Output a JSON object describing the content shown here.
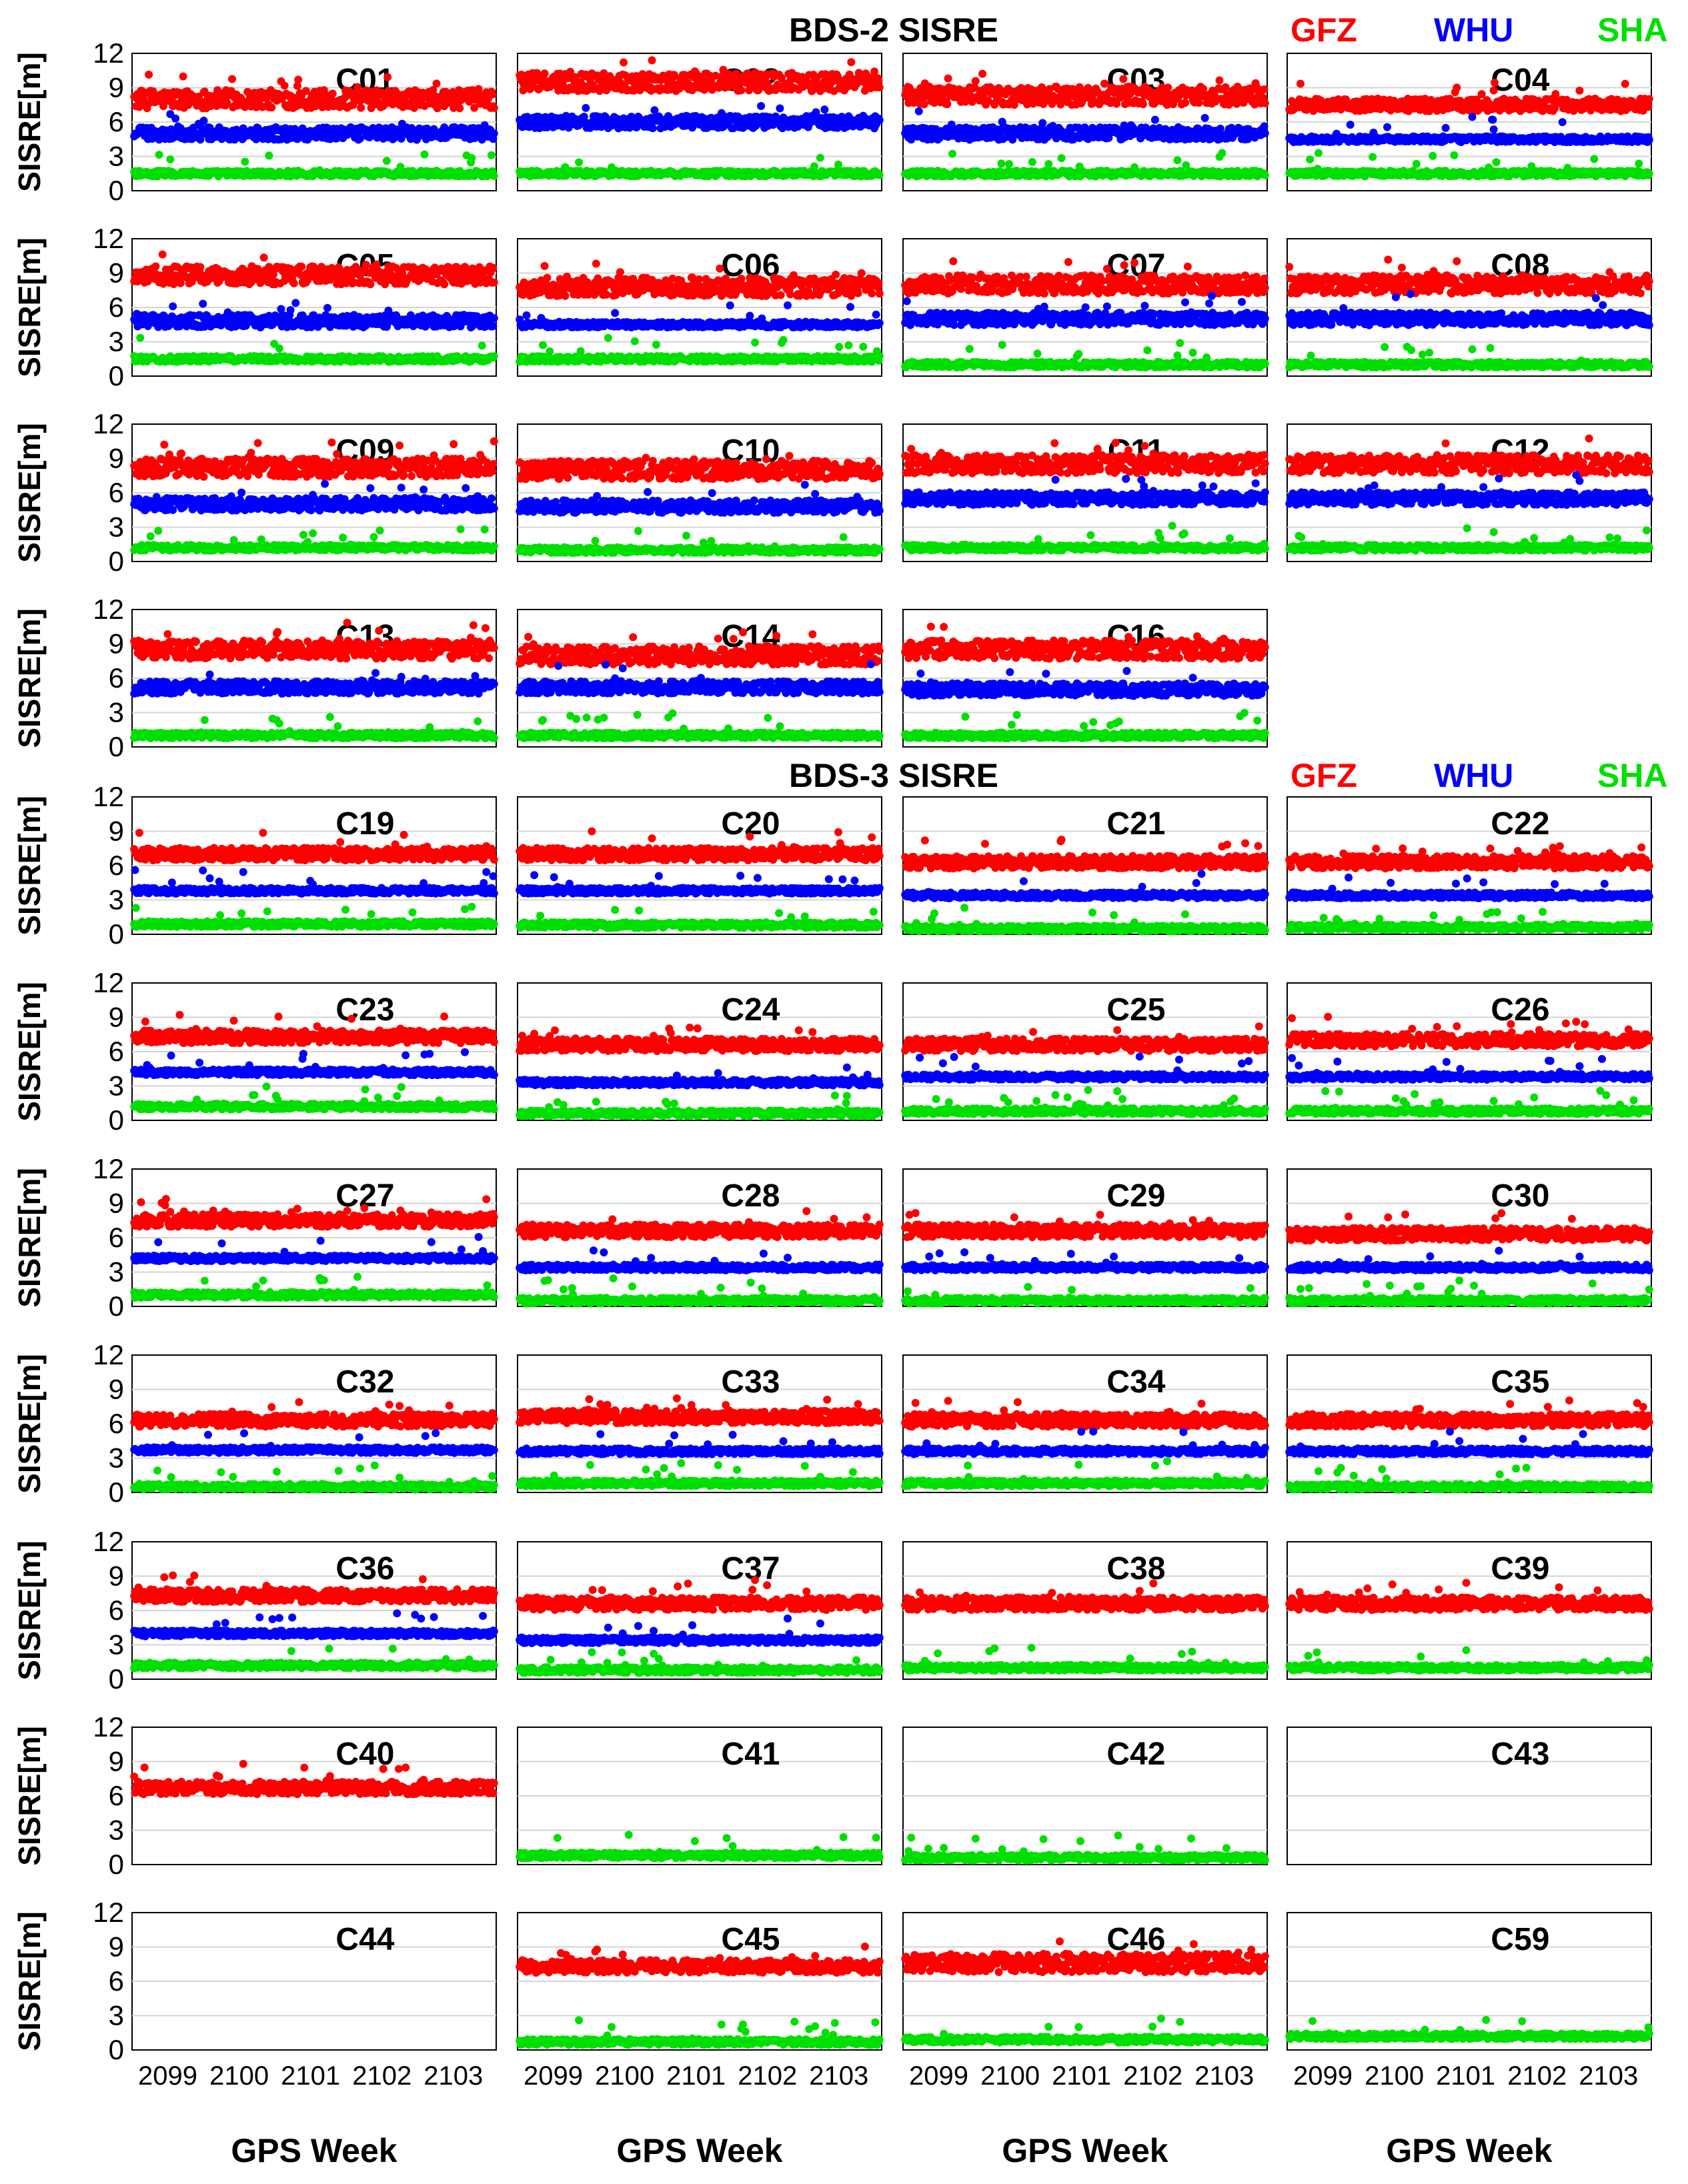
{
  "figure": {
    "sections": [
      {
        "title": "BDS-2 SISRE",
        "legend": [
          {
            "label": "GFZ",
            "color": "#ff0000"
          },
          {
            "label": "WHU",
            "color": "#0000ff"
          },
          {
            "label": "SHA",
            "color": "#00e000"
          }
        ]
      },
      {
        "title": "BDS-3 SISRE",
        "legend": [
          {
            "label": "GFZ",
            "color": "#ff0000"
          },
          {
            "label": "WHU",
            "color": "#0000ff"
          },
          {
            "label": "SHA",
            "color": "#00e000"
          }
        ]
      }
    ],
    "ylabel": "SISRE[m]",
    "xlabel": "GPS Week",
    "yticks": [
      "0",
      "3",
      "6",
      "9",
      "12"
    ],
    "xticks": [
      "2099",
      "2100",
      "2101",
      "2102",
      "2103"
    ]
  },
  "chart_data": {
    "type": "scatter",
    "ylabel": "SISRE[m]",
    "xlabel": "GPS Week",
    "ylim": [
      0,
      12
    ],
    "xlim": [
      2098.5,
      2103.6
    ],
    "grid": true,
    "legend": [
      "GFZ",
      "WHU",
      "SHA"
    ],
    "colors": {
      "GFZ": "#ff0000",
      "WHU": "#0000ff",
      "SHA": "#00e000"
    },
    "panels": [
      {
        "prn": "C01",
        "GFZ": 8.0,
        "WHU": 5.0,
        "SHA": 1.5
      },
      {
        "prn": "C02",
        "GFZ": 9.5,
        "WHU": 6.0,
        "SHA": 1.5
      },
      {
        "prn": "C03",
        "GFZ": 8.3,
        "WHU": 5.0,
        "SHA": 1.5
      },
      {
        "prn": "C04",
        "GFZ": 7.5,
        "WHU": 4.5,
        "SHA": 1.5
      },
      {
        "prn": "C05",
        "GFZ": 8.8,
        "WHU": 4.8,
        "SHA": 1.5
      },
      {
        "prn": "C06",
        "GFZ": 7.8,
        "WHU": 4.5,
        "SHA": 1.5
      },
      {
        "prn": "C07",
        "GFZ": 8.0,
        "WHU": 5.0,
        "SHA": 1.0
      },
      {
        "prn": "C08",
        "GFZ": 8.0,
        "WHU": 5.0,
        "SHA": 1.0
      },
      {
        "prn": "C09",
        "GFZ": 8.2,
        "WHU": 5.0,
        "SHA": 1.2
      },
      {
        "prn": "C10",
        "GFZ": 8.0,
        "WHU": 4.8,
        "SHA": 1.0
      },
      {
        "prn": "C11",
        "GFZ": 8.5,
        "WHU": 5.5,
        "SHA": 1.2
      },
      {
        "prn": "C12",
        "GFZ": 8.5,
        "WHU": 5.5,
        "SHA": 1.2
      },
      {
        "prn": "C13",
        "GFZ": 8.5,
        "WHU": 5.2,
        "SHA": 1.0
      },
      {
        "prn": "C14",
        "GFZ": 8.0,
        "WHU": 5.2,
        "SHA": 1.0
      },
      {
        "prn": "C16",
        "GFZ": 8.5,
        "WHU": 5.0,
        "SHA": 1.0
      },
      {
        "prn": "C19",
        "GFZ": 7.0,
        "WHU": 3.8,
        "SHA": 0.9
      },
      {
        "prn": "C20",
        "GFZ": 7.0,
        "WHU": 3.8,
        "SHA": 0.8
      },
      {
        "prn": "C21",
        "GFZ": 6.3,
        "WHU": 3.4,
        "SHA": 0.5
      },
      {
        "prn": "C22",
        "GFZ": 6.3,
        "WHU": 3.4,
        "SHA": 0.6
      },
      {
        "prn": "C23",
        "GFZ": 7.3,
        "WHU": 4.2,
        "SHA": 1.2
      },
      {
        "prn": "C24",
        "GFZ": 6.6,
        "WHU": 3.3,
        "SHA": 0.6
      },
      {
        "prn": "C25",
        "GFZ": 6.6,
        "WHU": 3.8,
        "SHA": 0.8
      },
      {
        "prn": "C26",
        "GFZ": 7.0,
        "WHU": 3.8,
        "SHA": 0.8
      },
      {
        "prn": "C27",
        "GFZ": 7.5,
        "WHU": 4.2,
        "SHA": 1.0
      },
      {
        "prn": "C28",
        "GFZ": 6.6,
        "WHU": 3.4,
        "SHA": 0.5
      },
      {
        "prn": "C29",
        "GFZ": 6.6,
        "WHU": 3.4,
        "SHA": 0.5
      },
      {
        "prn": "C30",
        "GFZ": 6.3,
        "WHU": 3.4,
        "SHA": 0.5
      },
      {
        "prn": "C32",
        "GFZ": 6.3,
        "WHU": 3.7,
        "SHA": 0.5
      },
      {
        "prn": "C33",
        "GFZ": 6.6,
        "WHU": 3.6,
        "SHA": 0.8
      },
      {
        "prn": "C34",
        "GFZ": 6.3,
        "WHU": 3.6,
        "SHA": 0.8
      },
      {
        "prn": "C35",
        "GFZ": 6.3,
        "WHU": 3.6,
        "SHA": 0.5
      },
      {
        "prn": "C36",
        "GFZ": 7.3,
        "WHU": 4.0,
        "SHA": 1.2
      },
      {
        "prn": "C37",
        "GFZ": 6.6,
        "WHU": 3.4,
        "SHA": 0.8
      },
      {
        "prn": "C38",
        "GFZ": 6.6,
        "WHU": null,
        "SHA": 1.0
      },
      {
        "prn": "C39",
        "GFZ": 6.6,
        "WHU": null,
        "SHA": 1.0
      },
      {
        "prn": "C40",
        "GFZ": 6.7,
        "WHU": null,
        "SHA": null
      },
      {
        "prn": "C41",
        "GFZ": null,
        "WHU": null,
        "SHA": 0.8
      },
      {
        "prn": "C42",
        "GFZ": null,
        "WHU": null,
        "SHA": 0.6
      },
      {
        "prn": "C43",
        "GFZ": null,
        "WHU": null,
        "SHA": null
      },
      {
        "prn": "C44",
        "GFZ": null,
        "WHU": null,
        "SHA": null
      },
      {
        "prn": "C45",
        "GFZ": 7.3,
        "WHU": null,
        "SHA": 0.7
      },
      {
        "prn": "C46",
        "GFZ": 7.6,
        "WHU": null,
        "SHA": 0.9
      },
      {
        "prn": "C59",
        "GFZ": null,
        "WHU": null,
        "SHA": 1.2
      }
    ],
    "empty_slots": [
      15
    ]
  }
}
